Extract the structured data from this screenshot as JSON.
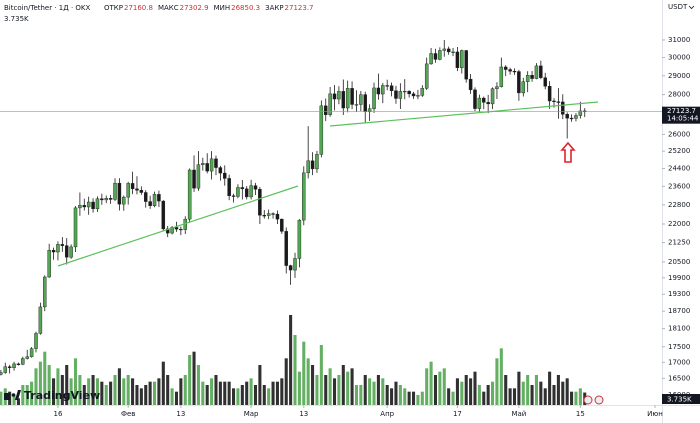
{
  "chart_data": {
    "type": "candlestick",
    "title": "Bitcoin/Tether · 1Д · OKX",
    "currency": "USDT",
    "ohlc_labels": [
      "ОТКР",
      "МАКС",
      "МИН",
      "ЗАКР"
    ],
    "volume_label": "3.735K",
    "countdown": "14:05:44",
    "watermark": "TradingView",
    "up_color": "#53a653",
    "down_color": "#1a1a1a",
    "log_scale": true,
    "grid": false,
    "ylim": [
      15700,
      33400
    ],
    "yticks": [
      31000,
      30000,
      29000,
      28000,
      26000,
      25200,
      24400,
      23600,
      22800,
      22000,
      21250,
      20500,
      19900,
      19300,
      18700,
      18100,
      17500,
      17000,
      16500,
      16000
    ],
    "xlim": [
      -0.2,
      150.6
    ],
    "xticks": [
      {
        "value": 13,
        "label": "16"
      },
      {
        "value": 29,
        "label": "Фев"
      },
      {
        "value": 41,
        "label": "13"
      },
      {
        "value": 57,
        "label": "Мар"
      },
      {
        "value": 69,
        "label": "13"
      },
      {
        "value": 88,
        "label": "Апр"
      },
      {
        "value": 104,
        "label": "17"
      },
      {
        "value": 118,
        "label": "Май"
      },
      {
        "value": 132,
        "label": "15"
      },
      {
        "value": 149,
        "label": "Июн"
      }
    ],
    "open": [
      16620,
      16680,
      16860,
      16830,
      16950,
      16940,
      17120,
      17180,
      17440,
      17940,
      18850,
      19930,
      20950,
      20880,
      21180,
      21130,
      20680,
      21080,
      22670,
      22780,
      22710,
      22920,
      22630,
      23060,
      23010,
      23080,
      23030,
      23740,
      22830,
      23130,
      23730,
      23490,
      23430,
      23330,
      22940,
      22760,
      23250,
      22960,
      21800,
      21630,
      21860,
      21790,
      21770,
      22200,
      24330,
      23520,
      24570,
      24630,
      24280,
      24840,
      24440,
      24190,
      23950,
      23190,
      23160,
      23550,
      23490,
      23140,
      23630,
      23470,
      22360,
      22350,
      22430,
      22410,
      22200,
      21700,
      20360,
      20190,
      20630,
      22160,
      24200,
      24750,
      24380,
      25050,
      27420,
      26970,
      28040,
      27770,
      28170,
      27310,
      28330,
      27490,
      27490,
      28000,
      27140,
      27270,
      28350,
      28030,
      28480,
      28470,
      28200,
      27800,
      28170,
      28180,
      28040,
      27930,
      27960,
      28330,
      29650,
      30230,
      29900,
      30400,
      30490,
      30320,
      30320,
      29440,
      30400,
      28820,
      28250,
      27280,
      27820,
      27600,
      27520,
      28310,
      28420,
      29480,
      29340,
      29250,
      29230,
      28090,
      28680,
      29030,
      28850,
      29540,
      28900,
      28440,
      27670,
      27630,
      27620,
      26990,
      26800,
      26790,
      26930,
      27160.8
    ],
    "high": [
      16760,
      16990,
      16920,
      17020,
      16990,
      17180,
      17400,
      17490,
      18000,
      19000,
      19990,
      21200,
      21050,
      21300,
      21470,
      21430,
      21180,
      22750,
      23330,
      23060,
      23150,
      23080,
      23160,
      23280,
      23200,
      23220,
      23960,
      23960,
      23200,
      23800,
      24250,
      24050,
      23600,
      23430,
      23190,
      23370,
      23410,
      23000,
      21920,
      21920,
      22090,
      21900,
      22320,
      24400,
      25000,
      25200,
      24890,
      25100,
      25200,
      24990,
      24520,
      24540,
      24120,
      23280,
      23690,
      23880,
      23610,
      23890,
      23750,
      23570,
      22580,
      22600,
      22480,
      22560,
      22230,
      21860,
      20390,
      20850,
      22200,
      24500,
      26400,
      25150,
      25210,
      27700,
      27800,
      28400,
      28500,
      28440,
      28800,
      28740,
      28700,
      28230,
      28190,
      28150,
      27500,
      28630,
      29120,
      28620,
      28790,
      28640,
      28460,
      28600,
      28820,
      28230,
      28140,
      28250,
      28500,
      30000,
      30540,
      30500,
      30580,
      31000,
      30620,
      30540,
      30600,
      30450,
      30430,
      29100,
      28380,
      28000,
      27900,
      27990,
      28380,
      28650,
      30000,
      29580,
      29440,
      29400,
      29320,
      28890,
      29250,
      29260,
      29690,
      29830,
      29160,
      28710,
      27820,
      28340,
      28020,
      27090,
      26990,
      27050,
      27630,
      27302.9
    ],
    "low": [
      16590,
      16640,
      16650,
      16740,
      16900,
      16910,
      17090,
      17150,
      17320,
      17900,
      18700,
      19900,
      20580,
      20560,
      20890,
      20400,
      20620,
      20880,
      22340,
      22560,
      22380,
      22470,
      22500,
      22800,
      22870,
      22840,
      22960,
      22560,
      22550,
      22810,
      23260,
      23250,
      23230,
      22680,
      22630,
      22700,
      22710,
      21700,
      21470,
      21580,
      21680,
      21550,
      21590,
      22050,
      23360,
      23400,
      24300,
      24180,
      23900,
      24100,
      23850,
      23630,
      23000,
      22900,
      23080,
      23030,
      23030,
      23030,
      23220,
      22000,
      22220,
      22200,
      22220,
      22000,
      21600,
      20060,
      19640,
      19900,
      20290,
      21950,
      23950,
      24100,
      24200,
      24910,
      26650,
      26870,
      27190,
      27500,
      26960,
      27090,
      27250,
      27130,
      27160,
      26570,
      26660,
      27060,
      27740,
      27560,
      28230,
      27910,
      27530,
      27260,
      27760,
      27850,
      27780,
      27760,
      27880,
      28240,
      29600,
      29710,
      29850,
      30050,
      30160,
      30080,
      29250,
      29120,
      28630,
      28040,
      27160,
      27100,
      27250,
      27050,
      27250,
      27770,
      28370,
      28980,
      29060,
      29050,
      27680,
      27900,
      28130,
      28680,
      28810,
      28820,
      28280,
      27270,
      27330,
      26770,
      26750,
      25800,
      26620,
      26640,
      26780,
      26850.3
    ],
    "close": [
      16680,
      16860,
      16830,
      16950,
      16940,
      17120,
      17180,
      17440,
      17940,
      18850,
      19930,
      20950,
      20880,
      21180,
      21130,
      20680,
      21080,
      22670,
      22780,
      22710,
      22920,
      22630,
      23060,
      23010,
      23080,
      23030,
      23740,
      22830,
      23130,
      23730,
      23490,
      23430,
      23330,
      22940,
      22760,
      23250,
      22960,
      21800,
      21630,
      21860,
      21790,
      21770,
      22200,
      24330,
      23520,
      24570,
      24630,
      24280,
      24840,
      24440,
      24190,
      23950,
      23190,
      23160,
      23550,
      23490,
      23140,
      23630,
      23470,
      22360,
      22350,
      22430,
      22410,
      22200,
      21700,
      20360,
      20190,
      20630,
      22160,
      24200,
      24750,
      24380,
      25050,
      27420,
      26970,
      28040,
      27770,
      28170,
      27310,
      28330,
      27490,
      27490,
      28000,
      27140,
      27270,
      28350,
      28030,
      28480,
      28470,
      28200,
      27800,
      28170,
      28180,
      28040,
      27930,
      27960,
      28330,
      29650,
      30230,
      29900,
      30400,
      30490,
      30320,
      30320,
      29440,
      30400,
      28820,
      28250,
      27280,
      27820,
      27600,
      27520,
      28310,
      28420,
      29480,
      29340,
      29250,
      29230,
      28090,
      28680,
      29030,
      28850,
      29540,
      28900,
      28440,
      27670,
      27630,
      27620,
      26990,
      26800,
      26790,
      26930,
      27160.8,
      27123.7
    ],
    "volume": [
      4,
      5,
      4,
      3,
      2,
      6,
      6,
      7,
      11,
      13,
      16,
      12,
      8,
      11,
      9,
      12,
      8,
      14,
      9,
      6,
      8,
      9,
      8,
      7,
      6,
      7,
      9,
      11,
      8,
      9,
      8,
      6,
      5,
      6,
      7,
      7,
      8,
      13,
      9,
      5,
      4,
      8,
      9,
      15,
      16,
      12,
      7,
      6,
      8,
      9,
      7,
      7,
      7,
      5,
      5,
      6,
      7,
      8,
      6,
      12,
      6,
      5,
      7,
      7,
      8,
      14,
      27,
      21,
      10,
      19,
      14,
      12,
      9,
      18,
      9,
      11,
      8,
      9,
      12,
      10,
      11,
      6,
      6,
      9,
      8,
      7,
      9,
      8,
      6,
      5,
      7,
      6,
      5,
      4,
      4,
      3,
      4,
      11,
      13,
      9,
      10,
      11,
      5,
      4,
      8,
      7,
      9,
      8,
      10,
      6,
      4,
      6,
      7,
      14,
      17,
      9,
      5,
      5,
      10,
      7,
      9,
      6,
      9,
      7,
      5,
      10,
      6,
      9,
      7,
      8,
      4,
      4,
      5,
      3.735
    ]
  }
}
